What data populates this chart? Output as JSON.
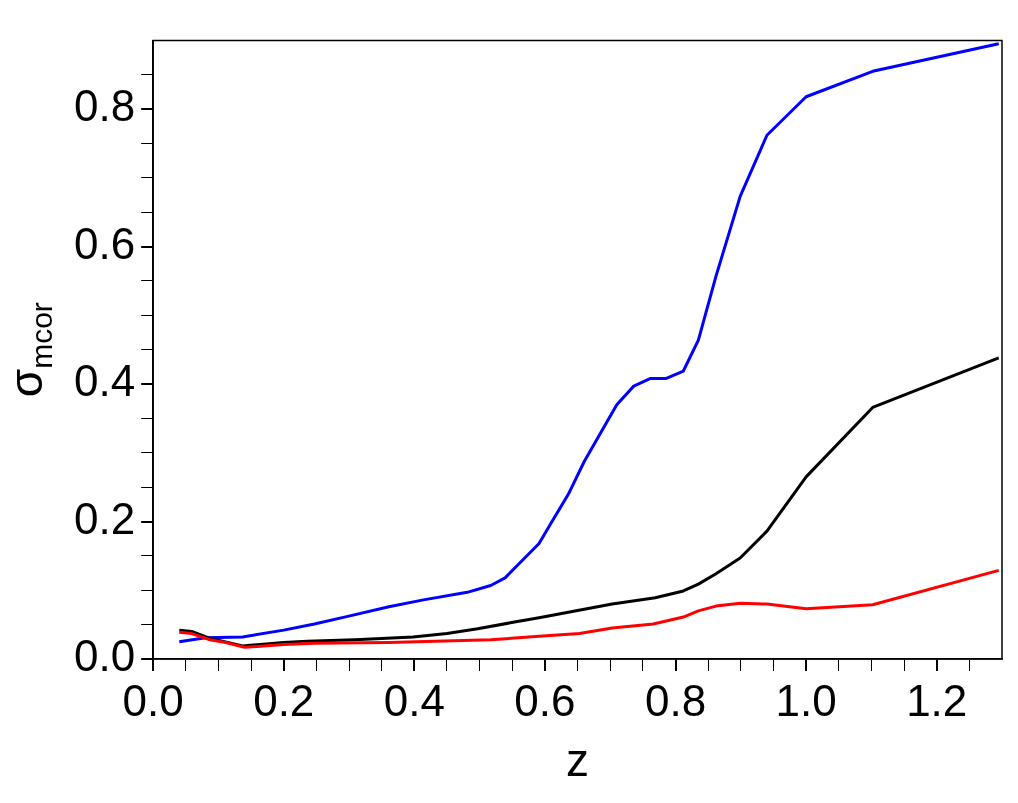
{
  "chart_data": {
    "type": "line",
    "xlabel": "z",
    "ylabel": "σ$_{mcor}$",
    "xlim": [
      0,
      1.3
    ],
    "ylim": [
      0,
      0.9
    ],
    "xticks": [
      {
        "value": 0,
        "label": "0.0"
      },
      {
        "value": 0.05,
        "label": null
      },
      {
        "value": 0.1,
        "label": null
      },
      {
        "value": 0.15,
        "label": null
      },
      {
        "value": 0.2,
        "label": "0.2"
      },
      {
        "value": 0.25,
        "label": null
      },
      {
        "value": 0.3,
        "label": null
      },
      {
        "value": 0.35,
        "label": null
      },
      {
        "value": 0.4,
        "label": "0.4"
      },
      {
        "value": 0.45,
        "label": null
      },
      {
        "value": 0.5,
        "label": null
      },
      {
        "value": 0.55,
        "label": null
      },
      {
        "value": 0.6,
        "label": "0.6"
      },
      {
        "value": 0.65,
        "label": null
      },
      {
        "value": 0.7,
        "label": null
      },
      {
        "value": 0.75,
        "label": null
      },
      {
        "value": 0.8,
        "label": "0.8"
      },
      {
        "value": 0.85,
        "label": null
      },
      {
        "value": 0.9,
        "label": null
      },
      {
        "value": 0.95,
        "label": null
      },
      {
        "value": 1.0,
        "label": "1.0"
      },
      {
        "value": 1.05,
        "label": null
      },
      {
        "value": 1.1,
        "label": null
      },
      {
        "value": 1.15,
        "label": null
      },
      {
        "value": 1.2,
        "label": "1.2"
      },
      {
        "value": 1.25,
        "label": null
      }
    ],
    "yticks": [
      {
        "value": 0,
        "label": "0.0"
      },
      {
        "value": 0.05,
        "label": null
      },
      {
        "value": 0.1,
        "label": null
      },
      {
        "value": 0.15,
        "label": null
      },
      {
        "value": 0.2,
        "label": "0.2"
      },
      {
        "value": 0.25,
        "label": null
      },
      {
        "value": 0.3,
        "label": null
      },
      {
        "value": 0.35,
        "label": null
      },
      {
        "value": 0.4,
        "label": "0.4"
      },
      {
        "value": 0.45,
        "label": null
      },
      {
        "value": 0.5,
        "label": null
      },
      {
        "value": 0.55,
        "label": null
      },
      {
        "value": 0.6,
        "label": "0.6"
      },
      {
        "value": 0.65,
        "label": null
      },
      {
        "value": 0.7,
        "label": null
      },
      {
        "value": 0.75,
        "label": null
      },
      {
        "value": 0.8,
        "label": "0.8"
      },
      {
        "value": 0.85,
        "label": null
      }
    ],
    "grid": false,
    "legend": false,
    "marker": "none",
    "line_style": "solid",
    "series": [
      {
        "color": "#0000ff",
        "x": [
          0.04,
          0.08,
          0.137,
          0.2,
          0.247,
          0.298,
          0.361,
          0.414,
          0.481,
          0.517,
          0.539,
          0.591,
          0.609,
          0.636,
          0.66,
          0.71,
          0.736,
          0.761,
          0.785,
          0.812,
          0.835,
          0.862,
          0.899,
          0.94,
          1.0,
          1.102,
          1.295
        ],
        "values": [
          0.025,
          0.031,
          0.032,
          0.042,
          0.051,
          0.062,
          0.076,
          0.086,
          0.097,
          0.107,
          0.118,
          0.168,
          0.197,
          0.24,
          0.287,
          0.37,
          0.397,
          0.408,
          0.408,
          0.419,
          0.464,
          0.557,
          0.673,
          0.762,
          0.818,
          0.855,
          0.895
        ]
      },
      {
        "color": "#000000",
        "x": [
          0.04,
          0.059,
          0.087,
          0.106,
          0.137,
          0.2,
          0.236,
          0.309,
          0.398,
          0.45,
          0.497,
          0.549,
          0.591,
          0.703,
          0.769,
          0.812,
          0.835,
          0.862,
          0.899,
          0.94,
          1.0,
          1.102,
          1.295
        ],
        "values": [
          0.042,
          0.04,
          0.03,
          0.026,
          0.019,
          0.024,
          0.026,
          0.028,
          0.032,
          0.037,
          0.044,
          0.053,
          0.06,
          0.08,
          0.089,
          0.099,
          0.109,
          0.124,
          0.147,
          0.186,
          0.265,
          0.366,
          0.438
        ]
      },
      {
        "color": "#ff0000",
        "x": [
          0.04,
          0.059,
          0.087,
          0.111,
          0.14,
          0.2,
          0.247,
          0.361,
          0.517,
          0.591,
          0.653,
          0.703,
          0.766,
          0.812,
          0.835,
          0.862,
          0.899,
          0.94,
          1.0,
          1.102,
          1.295
        ],
        "values": [
          0.039,
          0.037,
          0.028,
          0.024,
          0.017,
          0.021,
          0.023,
          0.024,
          0.028,
          0.033,
          0.037,
          0.045,
          0.051,
          0.061,
          0.07,
          0.077,
          0.081,
          0.08,
          0.073,
          0.079,
          0.129
        ]
      }
    ]
  }
}
